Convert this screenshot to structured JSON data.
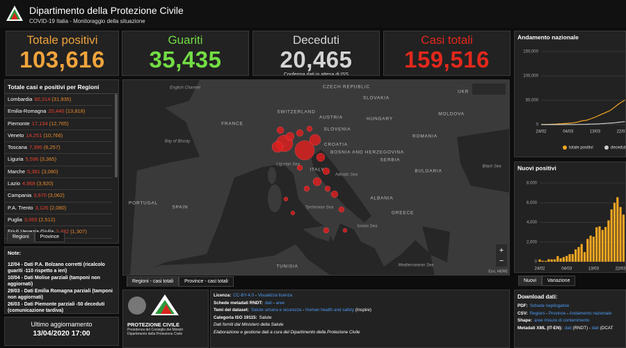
{
  "header": {
    "title": "Dipartimento della Protezione Civile",
    "subtitle": "COVID-19 Italia - Monitoraggio della situazione"
  },
  "kpis": [
    {
      "label": "Totale positivi",
      "value": "103,616",
      "color": "#f0a43c"
    },
    {
      "label": "Guariti",
      "value": "35,435",
      "color": "#72dd44"
    },
    {
      "label": "Deceduti",
      "value": "20,465",
      "note": "Conferma dati in attesa di ISS",
      "color": "#d4d4d4"
    },
    {
      "label": "Casi totali",
      "value": "159,516",
      "color": "#e3281c"
    }
  ],
  "regions": {
    "title": "Totale casi e positivi per Regioni",
    "rows": [
      {
        "name": "Lombardia",
        "total": "60,314",
        "positive": "(31,935)"
      },
      {
        "name": "Emilia-Romagna",
        "total": "20,440",
        "positive": "(13,818)"
      },
      {
        "name": "Piemonte",
        "total": "17,134",
        "positive": "(12,765)"
      },
      {
        "name": "Veneto",
        "total": "14,251",
        "positive": "(10,766)"
      },
      {
        "name": "Toscana",
        "total": "7,390",
        "positive": "(6,257)"
      },
      {
        "name": "Liguria",
        "total": "5,596",
        "positive": "(3,365)"
      },
      {
        "name": "Marche",
        "total": "5,381",
        "positive": "(3,080)"
      },
      {
        "name": "Lazio",
        "total": "4,968",
        "positive": "(3,920)"
      },
      {
        "name": "Campania",
        "total": "3,670",
        "positive": "(3,062)"
      },
      {
        "name": "P.A. Trento",
        "total": "3,126",
        "positive": "(2,080)"
      },
      {
        "name": "Puglia",
        "total": "3,065",
        "positive": "(2,512)"
      },
      {
        "name": "Friuli Venezia Giulia",
        "total": "2,482",
        "positive": "(1,307)"
      }
    ],
    "tabs": [
      "Regioni",
      "Province"
    ]
  },
  "notes": {
    "title": "Note:",
    "items": [
      "12/04 - Dati P.A. Bolzano corretti (ricalcolo guariti -110 rispetto a ieri)",
      "10/04 - Dati  Molise parziali (tamponi non aggiornati)",
      "29/03 - Dati  Emilia Romagna parziali (tamponi non aggiornati)",
      "26/03 - Dati Piemonte parziali -50 deceduti (comunicazione tardiva)"
    ]
  },
  "last_update": {
    "label": "Ultimo aggiornamento",
    "value": "13/04/2020 17:00"
  },
  "map": {
    "labels": [
      "FRANCE",
      "SWITZERLAND",
      "AUSTRIA",
      "CZECH REPUBLIC",
      "SLOVAKIA",
      "UKR",
      "HUNGARY",
      "MOLDOVA",
      "ROMANIA",
      "SLOVENIA",
      "CROATIA",
      "BOSNIA AND HERZEGOVINA",
      "SERBIA",
      "ITALY",
      "BULGARIA",
      "ALBANIA",
      "GREECE",
      "PORTUGAL",
      "SPAIN",
      "TUNISIA",
      "Bay of Biscay",
      "English Channel",
      "Ligurian Sea",
      "Tyrrhenian Sea",
      "Adriatic Sea",
      "Ionian Sea",
      "Black Sea",
      "Mediterranean Sea"
    ],
    "tabs": [
      "Regioni - casi totali",
      "Province - casi totali"
    ],
    "attribution": "Esri, HERE",
    "zoom": [
      "+",
      "−"
    ]
  },
  "logo": {
    "name": "PROTEZIONE CIVILE",
    "lines": [
      "Presidenza del Consiglio dei Ministri",
      "Dipartimento della Protezione Civile"
    ]
  },
  "info": {
    "lines": [
      {
        "label": "Licenza:",
        "parts": [
          {
            "text": "CC-BY-4.0",
            "link": true
          },
          {
            "text": " - ",
            "link": false
          },
          {
            "text": "Visualizza licenza",
            "link": true
          }
        ]
      },
      {
        "label": "Schede metadati RNDT:",
        "parts": [
          {
            "text": "dati",
            "link": true
          },
          {
            "text": " - ",
            "link": false
          },
          {
            "text": "aree",
            "link": true
          }
        ]
      },
      {
        "label": "Temi del dataset:",
        "parts": [
          {
            "text": "Salute umana e sicurezza",
            "link": true
          },
          {
            "text": " - ",
            "link": false
          },
          {
            "text": "Human health and safety",
            "link": true
          },
          {
            "text": " (Inspire)",
            "link": false
          }
        ]
      },
      {
        "label": "Categoria ISO 19115:",
        "parts": [
          {
            "text": "Salute",
            "link": false
          }
        ]
      },
      {
        "label": "",
        "parts": [
          {
            "text": "Dati forniti dal Ministero della Salute",
            "link": false
          }
        ]
      },
      {
        "label": "",
        "parts": [
          {
            "text": "Elaborazione e gestione dati a cura del Dipartimento della Protezione Civile",
            "link": false
          }
        ]
      }
    ]
  },
  "charts": [
    {
      "type": "line",
      "title": "Andamento nazionale",
      "categories": [
        "24/02",
        null,
        null,
        null,
        null,
        null,
        null,
        null,
        null,
        "04/03",
        null,
        null,
        null,
        null,
        null,
        null,
        null,
        null,
        "13/03",
        null,
        null,
        null,
        null,
        null,
        null,
        null,
        null,
        "22/03",
        null
      ],
      "series": [
        {
          "name": "totale positivi",
          "color": "#f5a623",
          "values": [
            221,
            311,
            385,
            588,
            821,
            1049,
            1577,
            1835,
            2263,
            2706,
            3296,
            3916,
            5061,
            6387,
            7985,
            8514,
            10590,
            12839,
            14955,
            17750,
            20603,
            23073,
            26062,
            28710,
            33190,
            37860,
            42681,
            46638,
            50418
          ]
        },
        {
          "name": "deceduti",
          "color": "#cfcfcf",
          "values": [
            7,
            10,
            12,
            17,
            21,
            29,
            34,
            52,
            79,
            107,
            148,
            197,
            233,
            366,
            463,
            631,
            827,
            1016,
            1266,
            1441,
            1809,
            2158,
            2503,
            2978,
            3405,
            4032,
            4825,
            5476,
            6077
          ]
        }
      ],
      "ylim": [
        0,
        150000
      ],
      "yticks": [
        0,
        {
          "value": 50000,
          "label": "50,000"
        },
        {
          "value": 100000,
          "label": "100,000"
        },
        {
          "value": 150000,
          "label": "150,000"
        }
      ],
      "grid": true
    },
    {
      "type": "bar",
      "title": "Nuovi positivi",
      "categories": [
        "24/02",
        null,
        null,
        null,
        null,
        null,
        null,
        null,
        null,
        "04/03",
        null,
        null,
        null,
        null,
        null,
        null,
        null,
        null,
        "13/03",
        null,
        null,
        null,
        null,
        null,
        null,
        null,
        null,
        "22/03",
        null
      ],
      "values": [
        229,
        93,
        78,
        250,
        238,
        240,
        566,
        342,
        466,
        587,
        769,
        778,
        1247,
        1492,
        1797,
        977,
        2313,
        2651,
        2547,
        3497,
        3590,
        3233,
        3526,
        4207,
        5322,
        5986,
        6557,
        5560,
        4789
      ],
      "color": "#f5a623",
      "ylim": [
        0,
        8000
      ],
      "yticks": [
        0,
        {
          "value": 2000,
          "label": "2,000"
        },
        {
          "value": 4000,
          "label": "4,000"
        },
        {
          "value": 6000,
          "label": "6,000"
        },
        {
          "value": 8000,
          "label": "8,000"
        }
      ],
      "grid": true,
      "tabs": [
        "Nuovi",
        "Variazione"
      ]
    }
  ],
  "downloads": {
    "title": "Download dati:",
    "lines": [
      {
        "label": "PDF:",
        "parts": [
          {
            "text": "Schede riepilogative",
            "link": true
          }
        ]
      },
      {
        "label": "CSV:",
        "parts": [
          {
            "text": "Regioni",
            "link": true
          },
          {
            "text": " - ",
            "link": false
          },
          {
            "text": "Province",
            "link": true
          },
          {
            "text": " - ",
            "link": false
          },
          {
            "text": "Andamento nazionale",
            "link": true
          }
        ]
      },
      {
        "label": "Shape:",
        "parts": [
          {
            "text": "aree misure di contenimento",
            "link": true
          }
        ]
      },
      {
        "label": "Metadati XML (IT-EN):",
        "parts": [
          {
            "text": "dati",
            "link": true
          },
          {
            "text": " (RNDT) - ",
            "link": false
          },
          {
            "text": "dati",
            "link": true
          },
          {
            "text": " (DCAT",
            "link": false
          }
        ]
      }
    ]
  }
}
